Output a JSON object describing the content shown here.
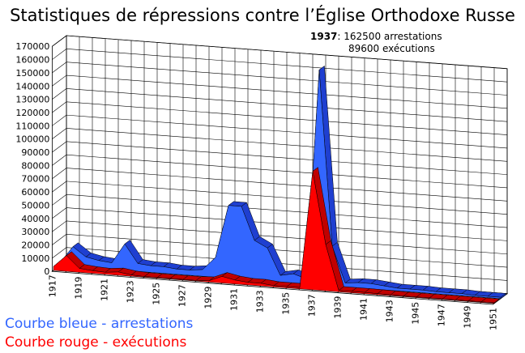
{
  "chart_data": {
    "type": "area3d",
    "title": "Statistiques de répressions contre l’Église Orthodoxe Russe",
    "annotation": {
      "year": "1937",
      "line1": ": 162500 arrestations",
      "line2": "89600 exécutions"
    },
    "categories": [
      "1917",
      null,
      "1919",
      null,
      "1921",
      null,
      "1923",
      null,
      "1925",
      null,
      "1927",
      null,
      "1929",
      null,
      "1931",
      null,
      "1933",
      null,
      "1935",
      null,
      "1937",
      null,
      "1939",
      null,
      "1941",
      null,
      "1943",
      null,
      "1945",
      null,
      "1947",
      null,
      "1949",
      null,
      "1951"
    ],
    "series": [
      {
        "name": "Courbe bleue - arrestations",
        "color": "#3366ff",
        "top_color": "#1f3fd0",
        "values": [
          2000,
          15000,
          8000,
          6000,
          5000,
          20000,
          6000,
          5000,
          5000,
          4000,
          4000,
          5000,
          15000,
          55000,
          55000,
          30000,
          25000,
          5000,
          7000,
          4000,
          162500,
          30000,
          3000,
          4000,
          4000,
          3000,
          2000,
          2000,
          2000,
          1500,
          1500,
          1500,
          1000,
          1000,
          1000
        ]
      },
      {
        "name": "Courbe rouge - exécutions",
        "color": "#ff0000",
        "top_color": "#c00000",
        "values": [
          3000,
          12000,
          3000,
          2000,
          1500,
          2500,
          1000,
          500,
          500,
          500,
          500,
          500,
          1000,
          5000,
          3000,
          2000,
          2000,
          1000,
          1000,
          1000,
          89600,
          35000,
          1000,
          1000,
          1000,
          800,
          600,
          500,
          500,
          500,
          500,
          500,
          500,
          500,
          500
        ]
      }
    ],
    "ylim": [
      0,
      170000
    ],
    "yticks": [
      0,
      10000,
      20000,
      30000,
      40000,
      50000,
      60000,
      70000,
      80000,
      90000,
      100000,
      110000,
      120000,
      130000,
      140000,
      150000,
      160000,
      170000
    ],
    "grid": true
  }
}
